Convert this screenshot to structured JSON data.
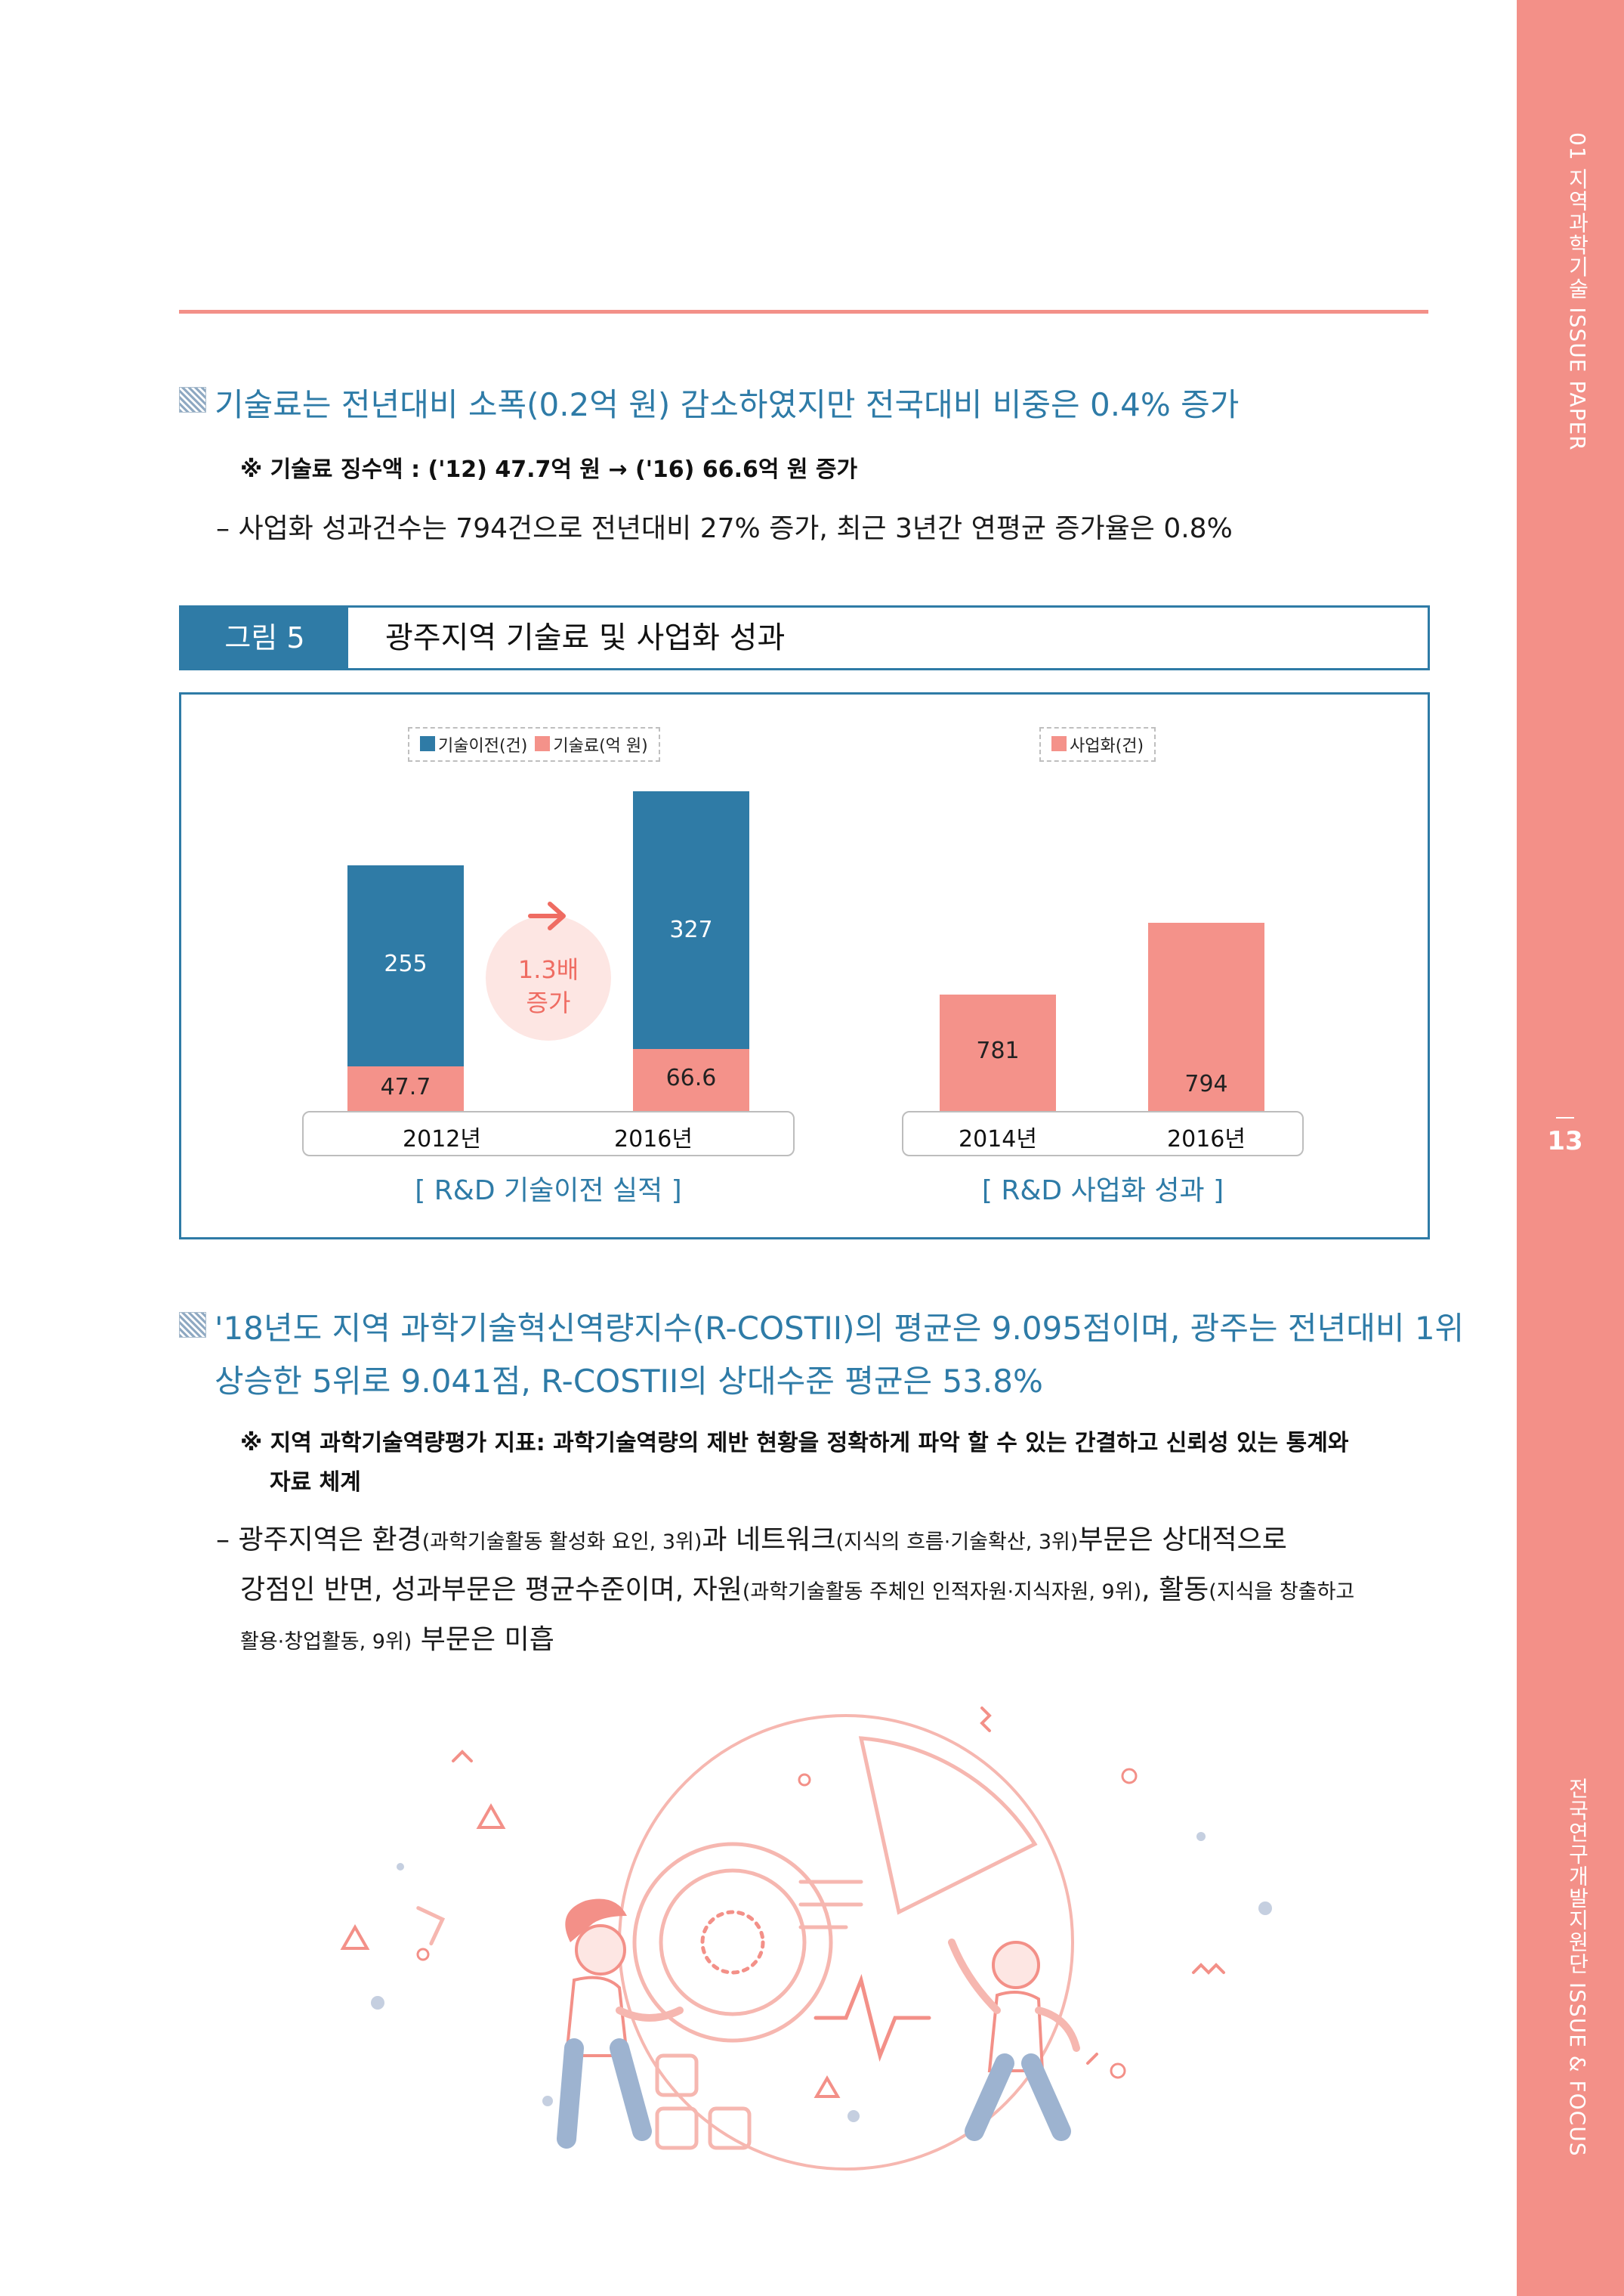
{
  "sidebar": {
    "top": "01 지역과학기술 ISSUE PAPER",
    "page_number": "13",
    "bottom": "전국연구개발지원단 ISSUE & FOCUS"
  },
  "section1": {
    "heading": "기술료는 전년대비 소폭(0.2억 원) 감소하였지만 전국대비 비중은 0.4% 증가",
    "note": "※ 기술료 징수액 : ('12) 47.7억 원 → ('16) 66.6억 원 증가",
    "bullet": "– 사업화 성과건수는 794건으로 전년대비 27% 증가, 최근 3년간 연평균 증가율은 0.8%"
  },
  "figure": {
    "label": "그림 5",
    "title": "광주지역 기술료 및 사업화 성과"
  },
  "chart_data": [
    {
      "type": "bar",
      "stacked": true,
      "categories": [
        "2012년",
        "2016년"
      ],
      "series": [
        {
          "name": "기술이전(건)",
          "color": "#2f7ba6",
          "values": [
            255,
            327
          ]
        },
        {
          "name": "기술료(억 원)",
          "color": "#f4928a",
          "values": [
            47.7,
            66.6
          ]
        }
      ],
      "annotation": [
        "1.3배",
        "증가"
      ],
      "caption": "[ R&D 기술이전 실적 ]",
      "legend_position": "top-center"
    },
    {
      "type": "bar",
      "categories": [
        "2014년",
        "2016년"
      ],
      "series": [
        {
          "name": "사업화(건)",
          "color": "#f4928a",
          "values": [
            781,
            794
          ]
        }
      ],
      "caption": "[ R&D 사업화 성과 ]",
      "legend_position": "top-center"
    }
  ],
  "section2": {
    "heading_line1": "'18년도 지역 과학기술혁신역량지수(R-COSTII)의 평균은 9.095점이며, 광주는 전년대비 1위",
    "heading_line2": "상승한 5위로 9.041점, R-COSTII의 상대수준 평균은 53.8%",
    "note_line1": "※ 지역 과학기술역량평가 지표: 과학기술역량의 제반 현황을 정확하게 파악 할 수 있는 간결하고 신뢰성 있는 통계와",
    "note_line2": "자료 체계",
    "b1_a": "– 광주지역은 환경",
    "b1_b": "(과학기술활동 활성화 요인, 3위)",
    "b1_c": "과 네트워크",
    "b1_d": "(지식의 흐름·기술확산, 3위)",
    "b1_e": "부문은 상대적으로",
    "b2_a": "강점인 반면, 성과부문은 평균수준이며, 자원",
    "b2_b": "(과학기술활동 주체인 인적자원·지식자원, 9위)",
    "b2_c": ", 활동",
    "b2_d": "(지식을 창출하고",
    "b3_a": "활용·창업활동, 9위)",
    "b3_b": " 부문은 미흡"
  }
}
